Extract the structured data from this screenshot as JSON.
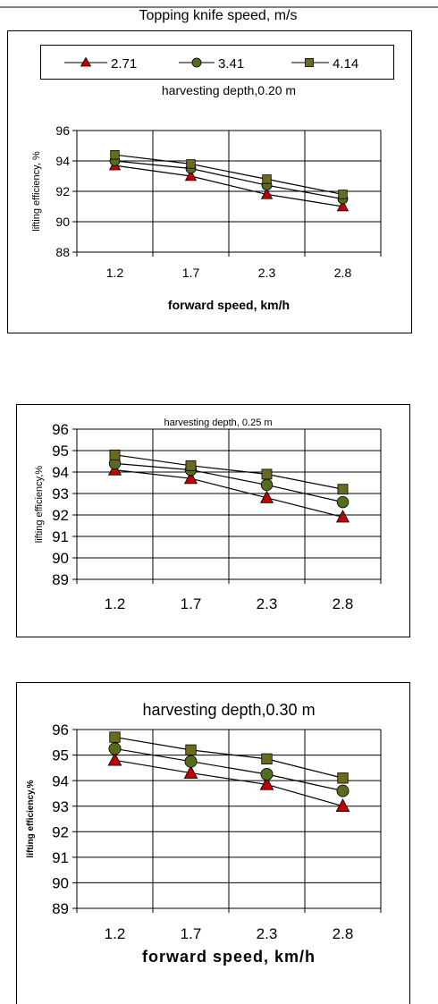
{
  "header": {
    "title": "Topping knife  speed, m/s"
  },
  "legend": {
    "entries": [
      "2.71",
      "3.41",
      "4.14"
    ]
  },
  "colors": {
    "triangle_fill": "#c00000",
    "circle_fill": "#556b1e",
    "square_fill": "#6b6b1e",
    "line": "#000000"
  },
  "chart_data": [
    {
      "type": "line",
      "title": "harvesting depth,0.20 m",
      "xlabel": "forward speed, km/h",
      "ylabel": "lifting efficiency, %",
      "categories": [
        "1.2",
        "1.7",
        "2.3",
        "2.8"
      ],
      "ylim": [
        88,
        96
      ],
      "yticks": [
        "88",
        "90",
        "92",
        "94",
        "96"
      ],
      "grid": true,
      "series": [
        {
          "name": "2.71",
          "marker": "triangle",
          "values": [
            93.7,
            93.0,
            91.8,
            91.0
          ]
        },
        {
          "name": "3.41",
          "marker": "circle",
          "values": [
            94.0,
            93.5,
            92.4,
            91.5
          ]
        },
        {
          "name": "4.14",
          "marker": "square",
          "values": [
            94.4,
            93.8,
            92.8,
            91.8
          ]
        }
      ]
    },
    {
      "type": "line",
      "title": "harvesting depth, 0.25 m",
      "xlabel": "",
      "ylabel": "lifting efficiency,%",
      "categories": [
        "1.2",
        "1.7",
        "2.3",
        "2.8"
      ],
      "ylim": [
        89,
        96
      ],
      "yticks": [
        "89",
        "90",
        "91",
        "92",
        "93",
        "94",
        "95",
        "96"
      ],
      "grid": true,
      "series": [
        {
          "name": "2.71",
          "marker": "triangle",
          "values": [
            94.1,
            93.7,
            92.8,
            91.9
          ]
        },
        {
          "name": "3.41",
          "marker": "circle",
          "values": [
            94.4,
            94.1,
            93.4,
            92.6
          ]
        },
        {
          "name": "4.14",
          "marker": "square",
          "values": [
            94.8,
            94.3,
            93.9,
            93.2
          ]
        }
      ]
    },
    {
      "type": "line",
      "title": "harvesting depth,0.30 m",
      "xlabel": "forward speed, km/h",
      "ylabel": "lifting efficiency,%",
      "categories": [
        "1.2",
        "1.7",
        "2.3",
        "2.8"
      ],
      "ylim": [
        89,
        96
      ],
      "yticks": [
        "89",
        "90",
        "91",
        "92",
        "93",
        "94",
        "95",
        "96"
      ],
      "grid": true,
      "series": [
        {
          "name": "2.71",
          "marker": "triangle",
          "values": [
            94.8,
            94.3,
            93.85,
            93.0
          ]
        },
        {
          "name": "3.41",
          "marker": "circle",
          "values": [
            95.25,
            94.75,
            94.25,
            93.6
          ]
        },
        {
          "name": "4.14",
          "marker": "square",
          "values": [
            95.7,
            95.2,
            94.85,
            94.1
          ]
        }
      ]
    }
  ]
}
